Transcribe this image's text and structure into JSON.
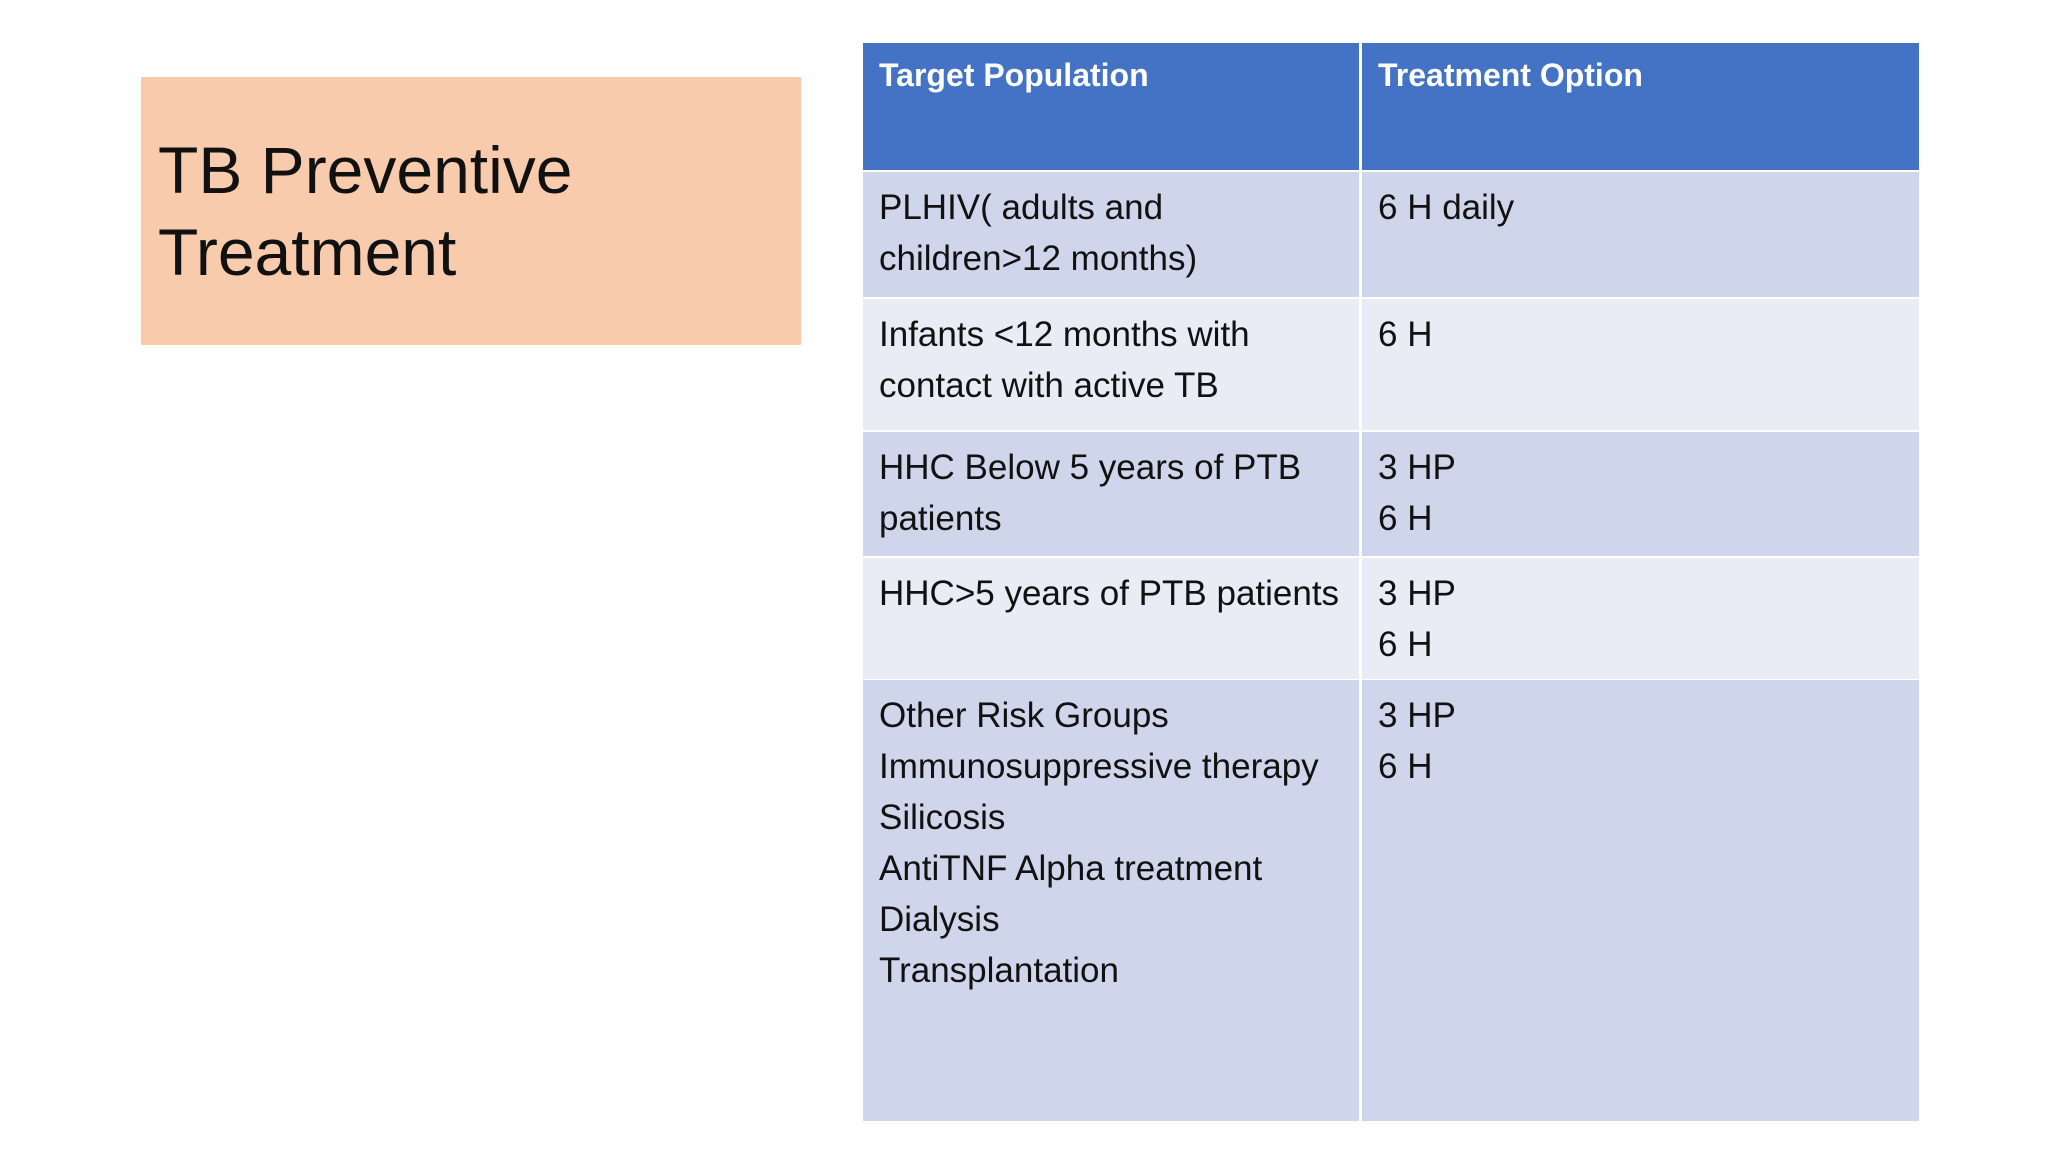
{
  "title": [
    "TB Preventive",
    "Treatment"
  ],
  "table": {
    "header": [
      "Target Population",
      "Treatment Option"
    ],
    "rows": [
      [
        [
          "PLHIV( adults and children>12 months)"
        ],
        [
          "6 H daily"
        ]
      ],
      [
        [
          "Infants <12 months with contact with active TB"
        ],
        [
          "6 H"
        ]
      ],
      [
        [
          "HHC Below 5 years of PTB patients"
        ],
        [
          "3 HP",
          "6 H"
        ]
      ],
      [
        [
          "HHC>5 years of PTB patients"
        ],
        [
          "3 HP",
          "6 H"
        ]
      ],
      [
        [
          "Other Risk Groups",
          "Immunosuppressive therapy",
          "Silicosis",
          "AntiTNF Alpha treatment",
          "Dialysis",
          "Transplantation"
        ],
        [
          "3 HP",
          "6 H"
        ]
      ]
    ]
  }
}
